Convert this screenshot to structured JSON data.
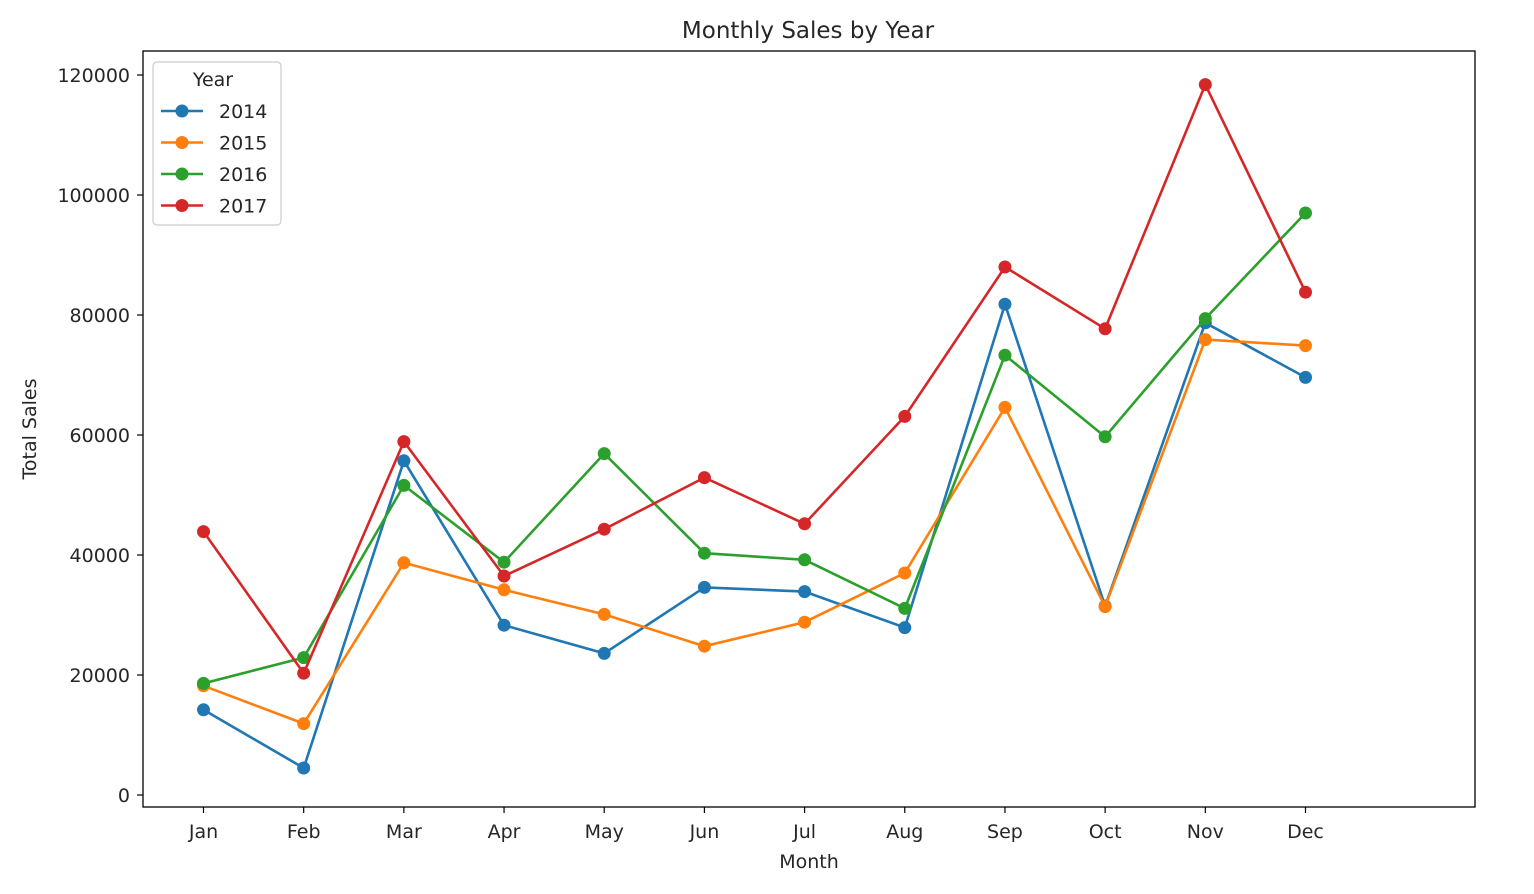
{
  "chart_data": {
    "type": "line",
    "title": "Monthly Sales by Year",
    "xlabel": "Month",
    "ylabel": "Total Sales",
    "categories": [
      "Jan",
      "Feb",
      "Mar",
      "Apr",
      "May",
      "Jun",
      "Jul",
      "Aug",
      "Sep",
      "Oct",
      "Nov",
      "Dec"
    ],
    "ylim": [
      -2000,
      124000
    ],
    "yticks": [
      0,
      20000,
      40000,
      60000,
      80000,
      100000,
      120000
    ],
    "grid": false,
    "legend": {
      "title": "Year",
      "placement": "top-left"
    },
    "series": [
      {
        "name": "2014",
        "color": "#1f77b4",
        "values": [
          14200,
          4500,
          55700,
          28300,
          23600,
          34600,
          33900,
          27900,
          81800,
          31500,
          78700,
          69600
        ]
      },
      {
        "name": "2015",
        "color": "#ff7f0e",
        "values": [
          18200,
          11900,
          38700,
          34200,
          30100,
          24800,
          28800,
          37000,
          64600,
          31400,
          75900,
          74900
        ]
      },
      {
        "name": "2016",
        "color": "#2ca02c",
        "values": [
          18600,
          22900,
          51600,
          38800,
          56900,
          40300,
          39200,
          31100,
          73300,
          59700,
          79400,
          97000
        ]
      },
      {
        "name": "2017",
        "color": "#d62728",
        "values": [
          43900,
          20300,
          58900,
          36500,
          44300,
          52900,
          45200,
          63100,
          88000,
          77700,
          118400,
          83800
        ]
      }
    ]
  }
}
